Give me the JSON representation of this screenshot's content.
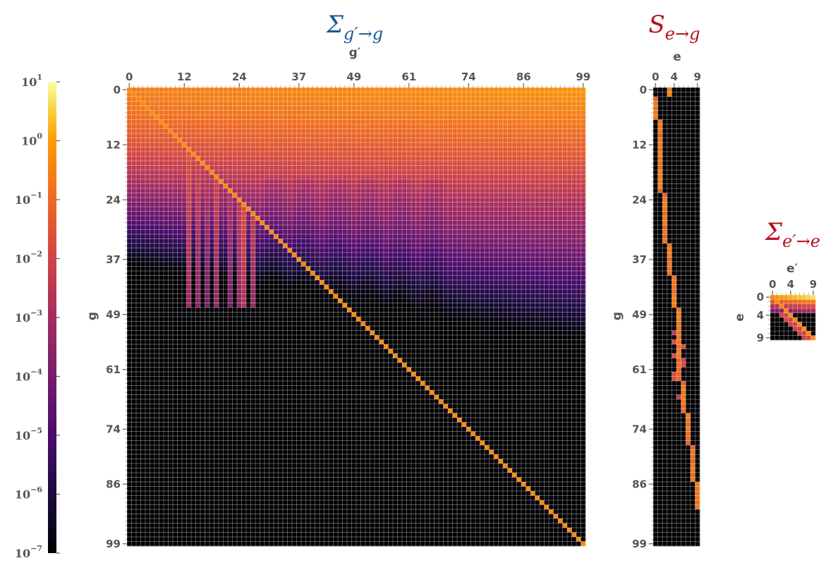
{
  "chart_data": [
    {
      "type": "heatmap",
      "title": {
        "main": "Σ",
        "sub": "g′→g",
        "color": "#1f5a96"
      },
      "xlabel": "g′",
      "ylabel": "g",
      "x_range": [
        0,
        99
      ],
      "y_range": [
        0,
        99
      ],
      "x_ticks": [
        "0",
        "12",
        "24",
        "37",
        "49",
        "61",
        "74",
        "86",
        "99"
      ],
      "y_ticks": [
        "0",
        "12",
        "24",
        "37",
        "49",
        "61",
        "74",
        "86",
        "99"
      ],
      "color_scale": "log",
      "note": "upper triangle filled (row g < 40–60), bright diagonal; lower region ~1e-7"
    },
    {
      "type": "heatmap",
      "title": {
        "main": "S",
        "sub": "e→g",
        "color": "#b5121b"
      },
      "xlabel": "e",
      "ylabel": "g",
      "x_range": [
        0,
        9
      ],
      "y_range": [
        0,
        99
      ],
      "x_ticks": [
        "0",
        "4",
        "9"
      ],
      "y_ticks": [
        "0",
        "12",
        "24",
        "37",
        "49",
        "61",
        "74",
        "86",
        "99"
      ],
      "color_scale": "log",
      "note": "staircase of non-zero entries, one element index per group band"
    },
    {
      "type": "heatmap",
      "title": {
        "main": "Σ",
        "sub": "e′→e",
        "color": "#b5121b"
      },
      "xlabel": "e′",
      "ylabel": "e",
      "x_range": [
        0,
        9
      ],
      "y_range": [
        0,
        9
      ],
      "x_ticks": [
        "0",
        "4",
        "9"
      ],
      "y_ticks": [
        "0",
        "4",
        "9"
      ],
      "color_scale": "log"
    }
  ],
  "colorbar": {
    "colormap": "inferno",
    "scale": "log",
    "min": 1e-07,
    "max": 10,
    "ticks": [
      {
        "base": "10",
        "exp": "1"
      },
      {
        "base": "10",
        "exp": "0"
      },
      {
        "base": "10",
        "exp": "−1"
      },
      {
        "base": "10",
        "exp": "−2"
      },
      {
        "base": "10",
        "exp": "−3"
      },
      {
        "base": "10",
        "exp": "−4"
      },
      {
        "base": "10",
        "exp": "−5"
      },
      {
        "base": "10",
        "exp": "−6"
      },
      {
        "base": "10",
        "exp": "−7"
      }
    ]
  }
}
